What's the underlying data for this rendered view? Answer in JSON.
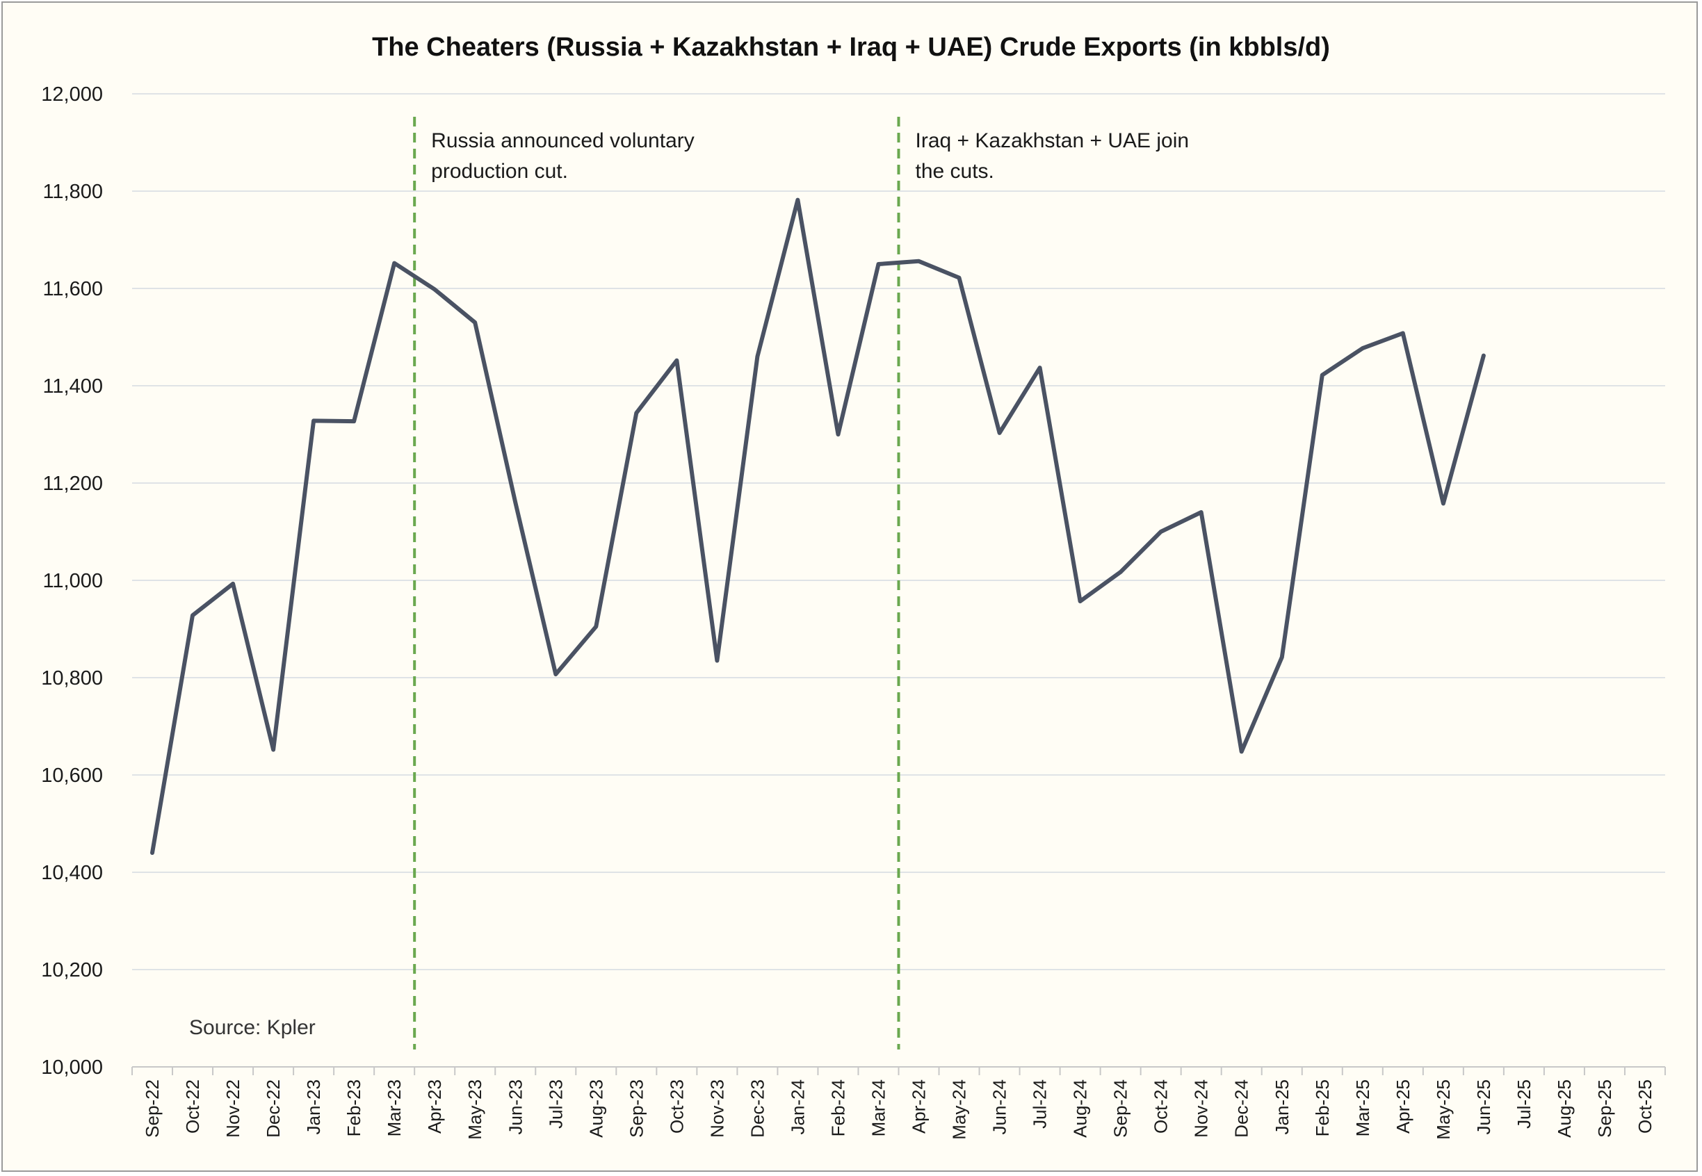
{
  "chart_data": {
    "type": "line",
    "title": "The Cheaters (Russia + Kazakhstan + Iraq + UAE) Crude Exports (in kbbls/d)",
    "xlabel": "",
    "ylabel": "",
    "ylim": [
      10000,
      12000
    ],
    "yticks": [
      10000,
      10200,
      10400,
      10600,
      10800,
      11000,
      11200,
      11400,
      11600,
      11800,
      12000
    ],
    "ytick_labels": [
      "10,000",
      "10,200",
      "10,400",
      "10,600",
      "10,800",
      "11,000",
      "11,200",
      "11,400",
      "11,600",
      "11,800",
      "12,000"
    ],
    "grid": true,
    "categories": [
      "Sep-22",
      "Oct-22",
      "Nov-22",
      "Dec-22",
      "Jan-23",
      "Feb-23",
      "Mar-23",
      "Apr-23",
      "May-23",
      "Jun-23",
      "Jul-23",
      "Aug-23",
      "Sep-23",
      "Oct-23",
      "Nov-23",
      "Dec-23",
      "Jan-24",
      "Feb-24",
      "Mar-24",
      "Apr-24",
      "May-24",
      "Jun-24",
      "Jul-24",
      "Aug-24",
      "Sep-24",
      "Oct-24",
      "Nov-24",
      "Dec-24",
      "Jan-25",
      "Feb-25",
      "Mar-25",
      "Apr-25",
      "May-25",
      "Jun-25",
      "Jul-25",
      "Aug-25",
      "Sep-25",
      "Oct-25"
    ],
    "series": [
      {
        "name": "Crude Exports",
        "color": "#4a5263",
        "values": [
          10440,
          10928,
          10993,
          10652,
          11328,
          11327,
          11652,
          11598,
          11530,
          11160,
          10807,
          10905,
          11344,
          11452,
          10835,
          11460,
          11782,
          11300,
          11650,
          11656,
          11622,
          11303,
          11437,
          10957,
          11017,
          11100,
          11140,
          10648,
          10842,
          11422,
          11477,
          11508,
          11158,
          11462,
          null,
          null,
          null,
          null
        ]
      }
    ],
    "annotations": [
      {
        "text_lines": [
          "Russia announced voluntary",
          "production cut."
        ],
        "at_category_index": 6.5,
        "color": "#6aa84f"
      },
      {
        "text_lines": [
          "Iraq + Kazakhstan + UAE join",
          "the cuts."
        ],
        "at_category_index": 18.5,
        "color": "#6aa84f"
      }
    ],
    "source": "Source: Kpler"
  }
}
